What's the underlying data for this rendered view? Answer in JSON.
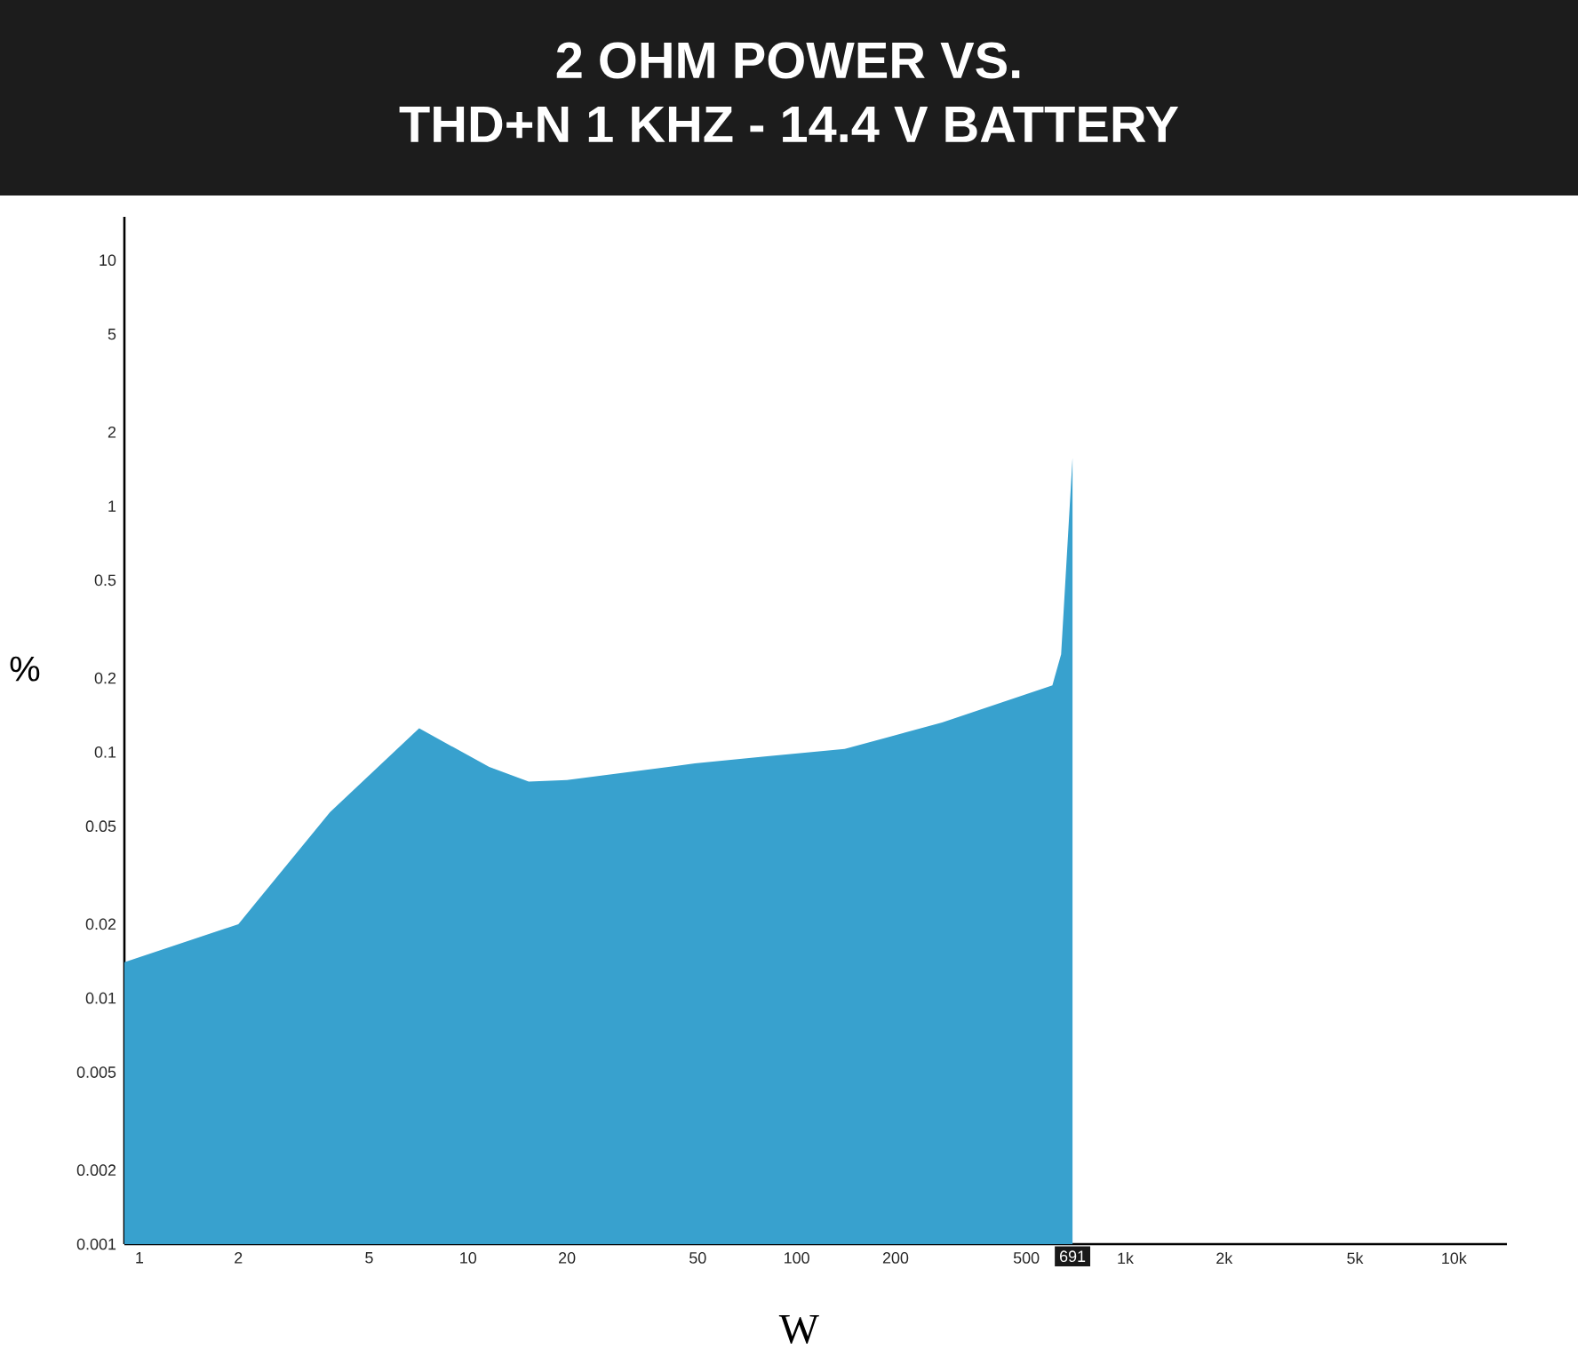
{
  "chart_data": {
    "type": "area",
    "title": "2 OHM POWER VS.",
    "subtitle": "THD+N 1 KHZ - 14.4 V BATTERY",
    "xlabel": "W",
    "ylabel": "%",
    "log": "xy",
    "color": "#38a1ce",
    "xlim": [
      0.9,
      14500
    ],
    "ylim": [
      0.001,
      15
    ],
    "xticks": [
      1,
      2,
      5,
      10,
      20,
      50,
      100,
      200,
      500,
      {
        "value": 1000,
        "label": "1k"
      },
      {
        "value": 2000,
        "label": "2k"
      },
      {
        "value": 5000,
        "label": "5k"
      },
      {
        "value": 10000,
        "label": "10k"
      }
    ],
    "yticks": [
      0.001,
      0.002,
      0.005,
      0.01,
      0.02,
      0.05,
      0.1,
      0.2,
      0.5,
      1,
      2,
      5,
      10
    ],
    "x": [
      0.9,
      2,
      3.8,
      7.1,
      11.6,
      15.3,
      20,
      49,
      80,
      140,
      190,
      277,
      600,
      638,
      691
    ],
    "values": [
      0.014,
      0.02,
      0.057,
      0.125,
      0.087,
      0.076,
      0.077,
      0.09,
      0.096,
      0.103,
      0.115,
      0.132,
      0.187,
      0.25,
      1.57
    ],
    "annotations": [
      {
        "text": "691",
        "x": 691,
        "y": 0.001
      }
    ]
  }
}
